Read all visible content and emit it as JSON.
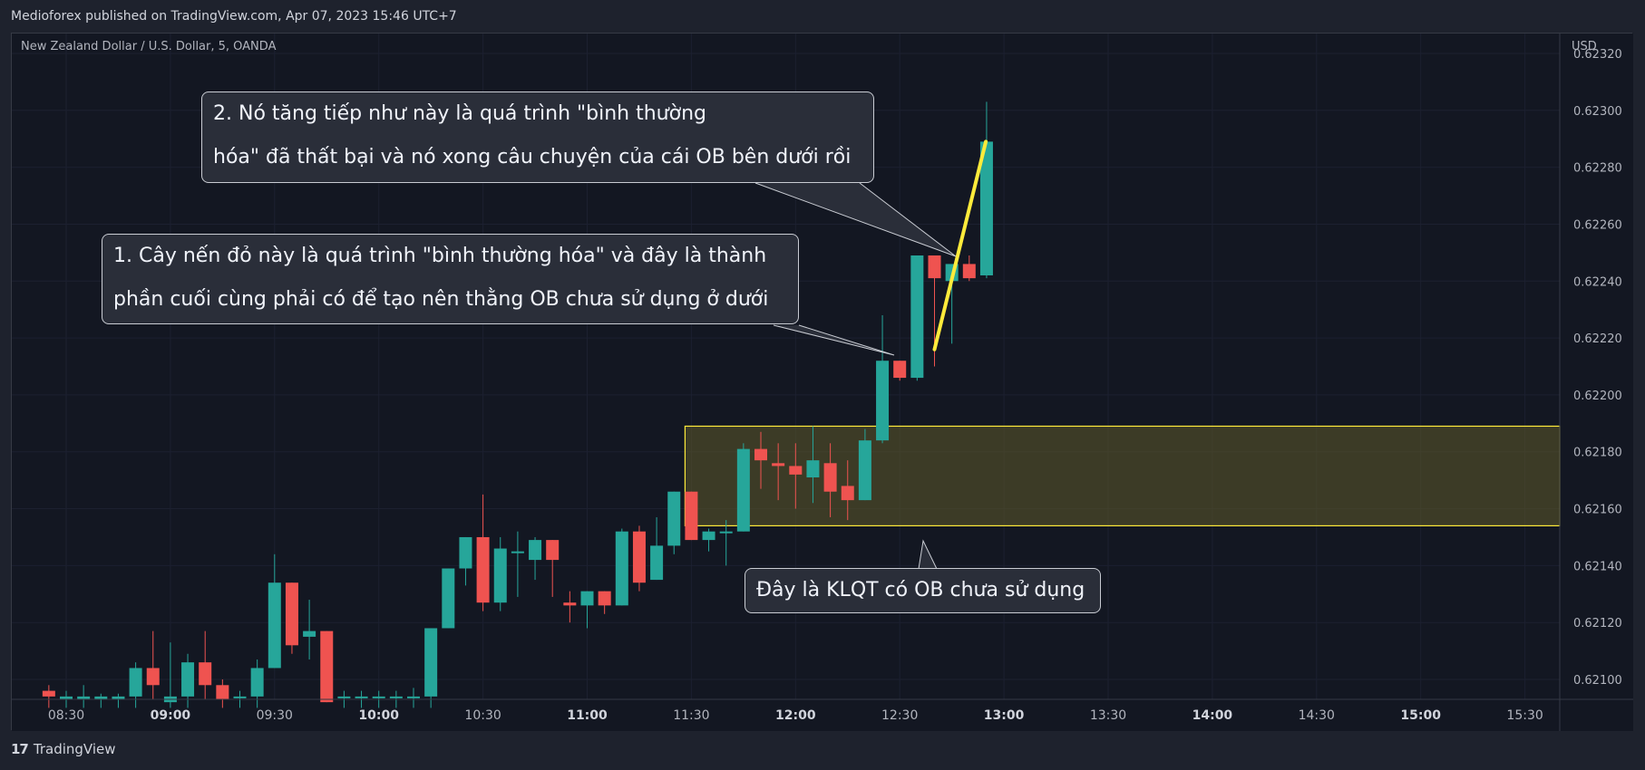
{
  "header": {
    "published": "Medioforex published on TradingView.com, Apr 07, 2023 15:46 UTC+7"
  },
  "symbol_label": "New Zealand Dollar / U.S. Dollar, 5, OANDA",
  "footer": {
    "brand": "TradingView",
    "logo_glyph": "17"
  },
  "colors": {
    "up": "#26a69a",
    "down": "#ef5350",
    "background": "#131722",
    "zone_fill": "#5f5a2a",
    "zone_stroke": "#ffeb3b",
    "trendline": "#ffeb3b",
    "callout_bg": "#2a2e39"
  },
  "annotations": {
    "note2_line1": "2. Nó tăng tiếp như này là quá trình \"bình thường",
    "note2_line2": "hóa\" đã thất bại và nó xong câu chuyện của cái OB bên dưới rồi",
    "note1_line1": "1. Cây nến đỏ này là quá trình \"bình thường hóa\" và đây là thành",
    "note1_line2": "phần cuối cùng phải có để tạo nên thằng OB chưa sử dụng ở dưới",
    "note3": "Đây là KLQT có OB chưa sử dụng"
  },
  "chart_data": {
    "type": "candlestick",
    "title": "New Zealand Dollar / U.S. Dollar, 5, OANDA",
    "currency": "USD",
    "ylim": [
      0.62093,
      0.62327
    ],
    "y_ticks": [
      "0.62100",
      "0.62120",
      "0.62140",
      "0.62160",
      "0.62180",
      "0.62200",
      "0.62220",
      "0.62240",
      "0.62260",
      "0.62280",
      "0.62300",
      "0.62320"
    ],
    "x_ticks": [
      {
        "t": "08:30",
        "major": false
      },
      {
        "t": "09:00",
        "major": true
      },
      {
        "t": "09:30",
        "major": false
      },
      {
        "t": "10:00",
        "major": true
      },
      {
        "t": "10:30",
        "major": false
      },
      {
        "t": "11:00",
        "major": true
      },
      {
        "t": "11:30",
        "major": false
      },
      {
        "t": "12:00",
        "major": true
      },
      {
        "t": "12:30",
        "major": false
      },
      {
        "t": "13:00",
        "major": true
      },
      {
        "t": "13:30",
        "major": false
      },
      {
        "t": "14:00",
        "major": true
      },
      {
        "t": "14:30",
        "major": false
      },
      {
        "t": "15:00",
        "major": true
      },
      {
        "t": "15:30",
        "major": false
      }
    ],
    "candles": [
      {
        "time": "08:25",
        "o": 0.62096,
        "h": 0.62098,
        "l": 0.6209,
        "c": 0.62094
      },
      {
        "time": "08:30",
        "o": 0.62093,
        "h": 0.62096,
        "l": 0.6209,
        "c": 0.62094
      },
      {
        "time": "08:35",
        "o": 0.62093,
        "h": 0.62098,
        "l": 0.6209,
        "c": 0.62094
      },
      {
        "time": "08:40",
        "o": 0.62093,
        "h": 0.62095,
        "l": 0.6209,
        "c": 0.62094
      },
      {
        "time": "08:45",
        "o": 0.62093,
        "h": 0.62095,
        "l": 0.6209,
        "c": 0.62094
      },
      {
        "time": "08:50",
        "o": 0.62094,
        "h": 0.62106,
        "l": 0.6209,
        "c": 0.62104
      },
      {
        "time": "08:55",
        "o": 0.62104,
        "h": 0.62117,
        "l": 0.62093,
        "c": 0.62098
      },
      {
        "time": "09:00",
        "o": 0.62092,
        "h": 0.62113,
        "l": 0.6209,
        "c": 0.62094
      },
      {
        "time": "09:05",
        "o": 0.62094,
        "h": 0.62109,
        "l": 0.6209,
        "c": 0.62106
      },
      {
        "time": "09:10",
        "o": 0.62106,
        "h": 0.62117,
        "l": 0.62093,
        "c": 0.62098
      },
      {
        "time": "09:15",
        "o": 0.62098,
        "h": 0.621,
        "l": 0.6209,
        "c": 0.62093
      },
      {
        "time": "09:20",
        "o": 0.62094,
        "h": 0.62096,
        "l": 0.6209,
        "c": 0.62094
      },
      {
        "time": "09:25",
        "o": 0.62094,
        "h": 0.62107,
        "l": 0.6209,
        "c": 0.62104
      },
      {
        "time": "09:30",
        "o": 0.62104,
        "h": 0.62144,
        "l": 0.62104,
        "c": 0.62134
      },
      {
        "time": "09:35",
        "o": 0.62134,
        "h": 0.62134,
        "l": 0.62109,
        "c": 0.62112
      },
      {
        "time": "09:40",
        "o": 0.62115,
        "h": 0.62128,
        "l": 0.62107,
        "c": 0.62117
      },
      {
        "time": "09:45",
        "o": 0.62117,
        "h": 0.62117,
        "l": 0.62092,
        "c": 0.62092
      },
      {
        "time": "09:50",
        "o": 0.62094,
        "h": 0.62096,
        "l": 0.6209,
        "c": 0.62094
      },
      {
        "time": "09:55",
        "o": 0.62094,
        "h": 0.62096,
        "l": 0.6209,
        "c": 0.62094
      },
      {
        "time": "10:00",
        "o": 0.62094,
        "h": 0.62096,
        "l": 0.6209,
        "c": 0.62094
      },
      {
        "time": "10:05",
        "o": 0.62094,
        "h": 0.62096,
        "l": 0.6209,
        "c": 0.62094
      },
      {
        "time": "10:10",
        "o": 0.62094,
        "h": 0.62097,
        "l": 0.6209,
        "c": 0.62094
      },
      {
        "time": "10:15",
        "o": 0.62094,
        "h": 0.62118,
        "l": 0.6209,
        "c": 0.62118
      },
      {
        "time": "10:20",
        "o": 0.62118,
        "h": 0.62139,
        "l": 0.62118,
        "c": 0.62139
      },
      {
        "time": "10:25",
        "o": 0.62139,
        "h": 0.6215,
        "l": 0.62133,
        "c": 0.6215
      },
      {
        "time": "10:30",
        "o": 0.6215,
        "h": 0.62165,
        "l": 0.62124,
        "c": 0.62127
      },
      {
        "time": "10:35",
        "o": 0.62127,
        "h": 0.6215,
        "l": 0.62124,
        "c": 0.62146
      },
      {
        "time": "10:40",
        "o": 0.62145,
        "h": 0.62152,
        "l": 0.62129,
        "c": 0.62145
      },
      {
        "time": "10:45",
        "o": 0.62142,
        "h": 0.6215,
        "l": 0.62135,
        "c": 0.62149
      },
      {
        "time": "10:50",
        "o": 0.62149,
        "h": 0.62149,
        "l": 0.62129,
        "c": 0.62142
      },
      {
        "time": "10:55",
        "o": 0.62127,
        "h": 0.62131,
        "l": 0.6212,
        "c": 0.62126
      },
      {
        "time": "11:00",
        "o": 0.62126,
        "h": 0.62131,
        "l": 0.62118,
        "c": 0.62131
      },
      {
        "time": "11:05",
        "o": 0.62131,
        "h": 0.62131,
        "l": 0.62123,
        "c": 0.62126
      },
      {
        "time": "11:10",
        "o": 0.62126,
        "h": 0.62153,
        "l": 0.62126,
        "c": 0.62152
      },
      {
        "time": "11:15",
        "o": 0.62152,
        "h": 0.62154,
        "l": 0.62131,
        "c": 0.62134
      },
      {
        "time": "11:20",
        "o": 0.62135,
        "h": 0.62157,
        "l": 0.62135,
        "c": 0.62147
      },
      {
        "time": "11:25",
        "o": 0.62147,
        "h": 0.62166,
        "l": 0.62144,
        "c": 0.62166
      },
      {
        "time": "11:30",
        "o": 0.62166,
        "h": 0.62166,
        "l": 0.62149,
        "c": 0.62149
      },
      {
        "time": "11:35",
        "o": 0.62149,
        "h": 0.62153,
        "l": 0.62145,
        "c": 0.62152
      },
      {
        "time": "11:40",
        "o": 0.62152,
        "h": 0.62156,
        "l": 0.6214,
        "c": 0.62152
      },
      {
        "time": "11:45",
        "o": 0.62152,
        "h": 0.62183,
        "l": 0.62152,
        "c": 0.62181
      },
      {
        "time": "11:50",
        "o": 0.62181,
        "h": 0.62187,
        "l": 0.62167,
        "c": 0.62177
      },
      {
        "time": "11:55",
        "o": 0.62176,
        "h": 0.62183,
        "l": 0.62163,
        "c": 0.62175
      },
      {
        "time": "12:00",
        "o": 0.62175,
        "h": 0.62183,
        "l": 0.6216,
        "c": 0.62172
      },
      {
        "time": "12:05",
        "o": 0.62171,
        "h": 0.62189,
        "l": 0.62162,
        "c": 0.62177
      },
      {
        "time": "12:10",
        "o": 0.62176,
        "h": 0.62183,
        "l": 0.62157,
        "c": 0.62166
      },
      {
        "time": "12:15",
        "o": 0.62168,
        "h": 0.62177,
        "l": 0.62156,
        "c": 0.62163
      },
      {
        "time": "12:20",
        "o": 0.62163,
        "h": 0.62188,
        "l": 0.62163,
        "c": 0.62184
      },
      {
        "time": "12:25",
        "o": 0.62184,
        "h": 0.62228,
        "l": 0.62183,
        "c": 0.62212
      },
      {
        "time": "12:30",
        "o": 0.62212,
        "h": 0.62212,
        "l": 0.62205,
        "c": 0.62206
      },
      {
        "time": "12:35",
        "o": 0.62206,
        "h": 0.62249,
        "l": 0.62205,
        "c": 0.62249
      },
      {
        "time": "12:40",
        "o": 0.62249,
        "h": 0.62249,
        "l": 0.6221,
        "c": 0.62241
      },
      {
        "time": "12:45",
        "o": 0.6224,
        "h": 0.62244,
        "l": 0.62218,
        "c": 0.62246
      },
      {
        "time": "12:50",
        "o": 0.62246,
        "h": 0.62249,
        "l": 0.6224,
        "c": 0.62241
      },
      {
        "time": "12:55",
        "o": 0.62242,
        "h": 0.62303,
        "l": 0.62241,
        "c": 0.62289
      }
    ],
    "order_block_zone": {
      "start": "11:30",
      "end": "15:35",
      "top": 0.62189,
      "bottom": 0.62154
    },
    "trendline": {
      "t1": "12:40",
      "p1": 0.62216,
      "t2": "13:00",
      "p2": 0.62289
    }
  }
}
